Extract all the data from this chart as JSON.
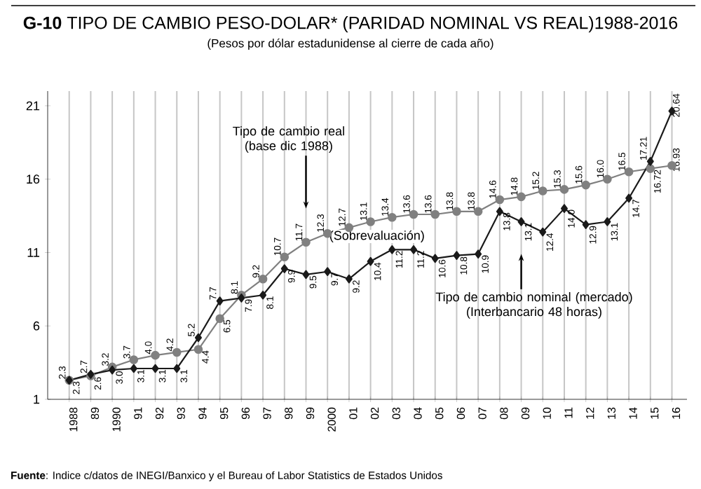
{
  "chart_data": {
    "type": "line",
    "title": "**G-10** TIPO DE CAMBIO PESO-DOLAR* (PARIDAD NOMINAL VS REAL)1988-2016",
    "subtitle": "(Pesos por dólar estadunidense al cierre de cada año)",
    "categories": [
      "1988",
      "89",
      "1990",
      "91",
      "92",
      "93",
      "94",
      "95",
      "96",
      "97",
      "98",
      "99",
      "2000",
      "01",
      "02",
      "03",
      "04",
      "05",
      "06",
      "07",
      "08",
      "09",
      "10",
      "11",
      "12",
      "13",
      "14",
      "15",
      "16"
    ],
    "series": [
      {
        "color": "#808080",
        "marker": "circle",
        "values": [
          2.3,
          2.6,
          3.2,
          3.7,
          4.0,
          4.2,
          4.4,
          6.5,
          8.1,
          9.2,
          10.7,
          11.7,
          12.3,
          12.7,
          13.1,
          13.4,
          13.6,
          13.6,
          13.8,
          13.8,
          14.6,
          14.8,
          15.2,
          15.3,
          15.6,
          16.0,
          16.5,
          16.72,
          16.93
        ],
        "value_labels": [
          "2.3",
          "2.6",
          "3.2",
          "3.7",
          "4.0",
          "4.2",
          "4.4",
          "6.5",
          "8.1",
          "9.2",
          "10.7",
          "11.7",
          "12.3",
          "12.7",
          "13.1",
          "13.4",
          "13.6",
          "13.6",
          "13.8",
          "13.8",
          "14.6",
          "14.8",
          "15.2",
          "15.3",
          "15.6",
          "16.0",
          "16.5",
          "16.72",
          "16.93"
        ]
      },
      {
        "color": "#1a1a1a",
        "marker": "diamond",
        "values": [
          2.3,
          2.7,
          3.0,
          3.1,
          3.1,
          3.1,
          5.2,
          7.7,
          7.9,
          8.1,
          9.9,
          9.5,
          9.7,
          9.2,
          10.4,
          11.2,
          11.2,
          10.6,
          10.8,
          10.9,
          13.8,
          13.1,
          12.4,
          14.0,
          12.9,
          13.1,
          14.7,
          17.21,
          20.64
        ],
        "value_labels": [
          "2.3",
          "2.7",
          "3.0",
          "3.1",
          "3.1",
          "3.1",
          "5.2",
          "7.7",
          "7.9",
          "8.1",
          "9.9",
          "9.5",
          "9.7",
          "9.2",
          "10.4",
          "11.2",
          "11.2",
          "10.6",
          "10.8",
          "10.9",
          "13.8",
          "13.1",
          "12.4",
          "14.0",
          "12.9",
          "13.1",
          "14.7",
          "17.21",
          "20.64"
        ]
      }
    ],
    "ylim": [
      1,
      22
    ],
    "yticks": [
      1,
      6,
      11,
      16,
      21
    ],
    "grid": "x",
    "line_style": "solid",
    "annotations": [
      "Tipo de cambio real (base dic 1988)",
      "(Sobrevaluación)",
      "Tipo de cambio nominal (mercado) (Interbancario 48 horas)",
      "**Fuente**: Indice c/datos de INEGI/Banxico y el Bureau of Labor Statistics de Estados Unidos"
    ]
  }
}
